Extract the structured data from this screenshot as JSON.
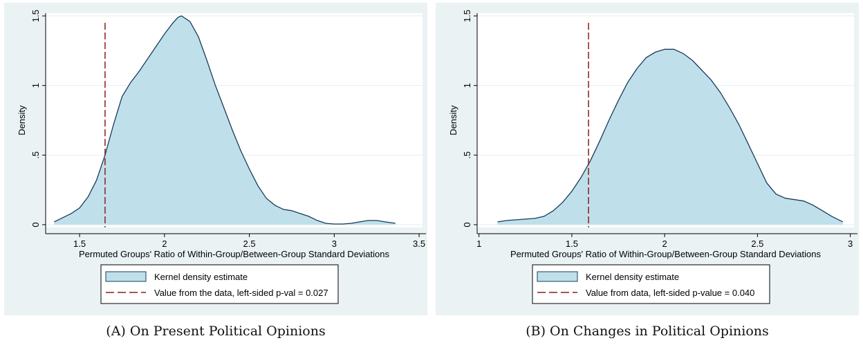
{
  "colors": {
    "panel_background": "#eaf2f3",
    "plot_background": "#ffffff",
    "density_fill": "#bfe0ea",
    "density_line": "#1a3a5a",
    "reference_line": "#8b1a1a",
    "gridline": "#e6eef0"
  },
  "chart_data": [
    {
      "type": "area",
      "caption": "(A) On Present Political Opinions",
      "xlabel": "Permuted Groups' Ratio of Within-Group/Between-Group Standard Deviations",
      "ylabel": "Density",
      "xlim": [
        1.3,
        3.52
      ],
      "ylim": [
        -0.02,
        1.52
      ],
      "xticks": [
        1.5,
        2,
        2.5,
        3,
        3.5
      ],
      "xtick_labels": [
        "1.5",
        "2",
        "2.5",
        "3",
        "3.5"
      ],
      "yticks": [
        0,
        0.5,
        1,
        1.5
      ],
      "ytick_labels": [
        "0",
        ".5",
        "1",
        "1.5"
      ],
      "grid": true,
      "legend_position": "bottom",
      "series": [
        {
          "name": "Kernel density estimate",
          "x": [
            1.35,
            1.4,
            1.45,
            1.5,
            1.55,
            1.6,
            1.65,
            1.7,
            1.75,
            1.8,
            1.85,
            1.9,
            1.95,
            2.0,
            2.05,
            2.08,
            2.1,
            2.15,
            2.2,
            2.25,
            2.3,
            2.35,
            2.4,
            2.45,
            2.5,
            2.55,
            2.6,
            2.65,
            2.7,
            2.75,
            2.8,
            2.85,
            2.9,
            2.95,
            3.0,
            3.05,
            3.1,
            3.15,
            3.2,
            3.25,
            3.3,
            3.36
          ],
          "y": [
            0.02,
            0.05,
            0.08,
            0.12,
            0.2,
            0.32,
            0.5,
            0.72,
            0.92,
            1.02,
            1.1,
            1.19,
            1.28,
            1.37,
            1.45,
            1.49,
            1.5,
            1.46,
            1.35,
            1.18,
            1.0,
            0.84,
            0.68,
            0.53,
            0.4,
            0.28,
            0.19,
            0.14,
            0.11,
            0.1,
            0.08,
            0.06,
            0.03,
            0.01,
            0.005,
            0.005,
            0.01,
            0.02,
            0.03,
            0.03,
            0.02,
            0.01
          ]
        }
      ],
      "reference_line": {
        "name": "Value from the data, left-sided p-val = 0.027",
        "x": 1.65
      }
    },
    {
      "type": "area",
      "caption": "(B) On Changes in Political Opinions",
      "xlabel": "Permuted Groups' Ratio of Within-Group/Between-Group Standard Deviations",
      "ylabel": "Density",
      "xlim": [
        0.99,
        3.02
      ],
      "ylim": [
        -0.02,
        1.52
      ],
      "xticks": [
        1,
        1.5,
        2,
        2.5,
        3
      ],
      "xtick_labels": [
        "1",
        "1.5",
        "2",
        "2.5",
        "3"
      ],
      "yticks": [
        0,
        0.5,
        1,
        1.5
      ],
      "ytick_labels": [
        "0",
        ".5",
        "1",
        "1.5"
      ],
      "grid": true,
      "legend_position": "bottom",
      "series": [
        {
          "name": "Kernel density estimate",
          "x": [
            1.1,
            1.15,
            1.2,
            1.25,
            1.3,
            1.35,
            1.4,
            1.45,
            1.5,
            1.55,
            1.6,
            1.65,
            1.7,
            1.75,
            1.8,
            1.85,
            1.9,
            1.95,
            2.0,
            2.05,
            2.1,
            2.15,
            2.2,
            2.25,
            2.3,
            2.35,
            2.4,
            2.45,
            2.5,
            2.55,
            2.6,
            2.65,
            2.7,
            2.75,
            2.8,
            2.85,
            2.9,
            2.96
          ],
          "y": [
            0.02,
            0.03,
            0.035,
            0.04,
            0.045,
            0.06,
            0.1,
            0.16,
            0.24,
            0.34,
            0.46,
            0.6,
            0.75,
            0.89,
            1.02,
            1.12,
            1.2,
            1.24,
            1.26,
            1.26,
            1.23,
            1.18,
            1.11,
            1.04,
            0.95,
            0.84,
            0.72,
            0.58,
            0.44,
            0.3,
            0.22,
            0.19,
            0.18,
            0.17,
            0.14,
            0.1,
            0.06,
            0.02
          ]
        }
      ],
      "reference_line": {
        "name": "Value from data, left-sided p-value = 0.040",
        "x": 1.59
      }
    }
  ]
}
